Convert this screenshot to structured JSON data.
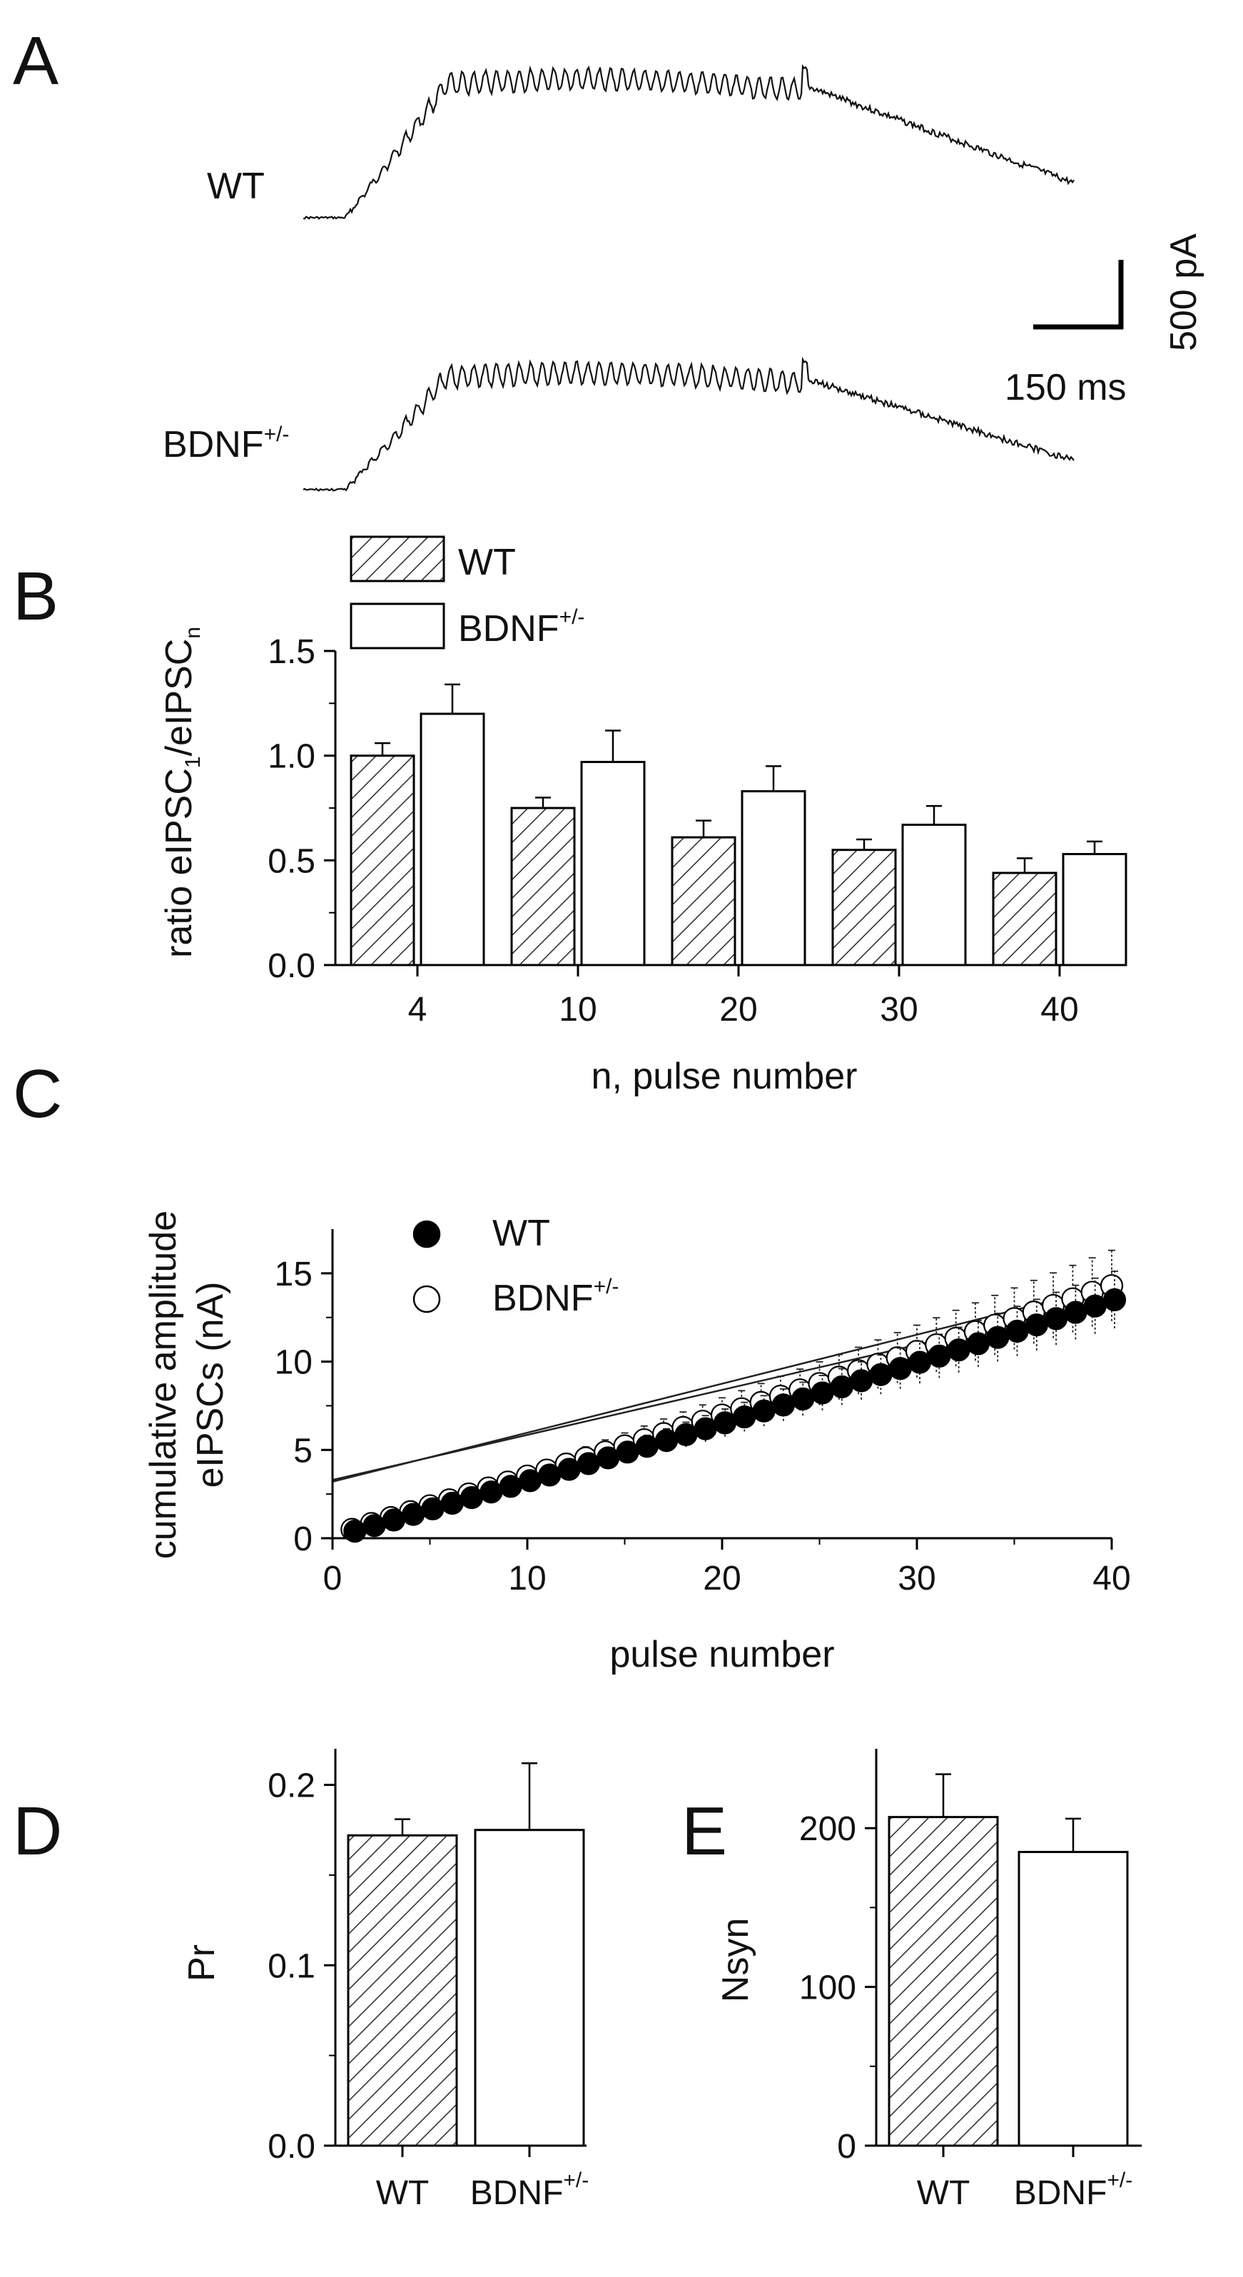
{
  "panel_labels": [
    "A",
    "B",
    "C",
    "D",
    "E"
  ],
  "panel_a": {
    "traces": [
      {
        "label": "WT",
        "sup": ""
      },
      {
        "label": "BDNF",
        "sup": "+/-"
      }
    ],
    "scalebar": {
      "amplitude_label": "500 pA",
      "time_label": "150 ms"
    }
  },
  "chart_data": [
    {
      "panel": "B",
      "type": "bar",
      "categories": [
        "4",
        "10",
        "20",
        "30",
        "40"
      ],
      "series": [
        {
          "name": "WT",
          "pattern": "hatched",
          "values": [
            1.0,
            0.75,
            0.61,
            0.55,
            0.44
          ],
          "errors": [
            0.06,
            0.05,
            0.08,
            0.05,
            0.07
          ]
        },
        {
          "name": "BDNF",
          "sup": "+/-",
          "pattern": "open",
          "values": [
            1.2,
            0.97,
            0.83,
            0.67,
            0.53
          ],
          "errors": [
            0.14,
            0.15,
            0.12,
            0.09,
            0.06
          ]
        }
      ],
      "ylabel": {
        "pre": "ratio eIPSC",
        "sub1": "1",
        "mid": "/eIPSC",
        "sub2": "n"
      },
      "xlabel": "n, pulse number",
      "ylim": [
        0,
        1.5
      ],
      "yticks": [
        "0.0",
        "0.5",
        "1.0",
        "1.5"
      ]
    },
    {
      "panel": "C",
      "type": "scatter",
      "series": [
        {
          "name": "WT",
          "marker": "filled-circle",
          "x_start": 1,
          "x_end": 40,
          "y_start": 0.4,
          "y_end": 13.5,
          "err_frac": 0.12
        },
        {
          "name": "BDNF",
          "sup": "+/-",
          "marker": "open-circle",
          "x_start": 1,
          "x_end": 40,
          "y_start": 0.5,
          "y_end": 14.3,
          "err_frac": 0.14
        }
      ],
      "fit_lines": [
        {
          "y_intercept": 3.3,
          "y_at_40": 13.5
        },
        {
          "y_intercept": 3.2,
          "y_at_40": 14.3
        }
      ],
      "ylabel_lines": [
        "cumulative amplitude",
        "eIPSCs (nA)"
      ],
      "xlabel": "pulse number",
      "xlim": [
        0,
        40
      ],
      "ylim": [
        0,
        17.5
      ],
      "xticks": [
        "0",
        "10",
        "20",
        "30",
        "40"
      ],
      "yticks": [
        "0",
        "5",
        "10",
        "15"
      ]
    },
    {
      "panel": "D",
      "type": "bar",
      "categories": [
        "WT",
        "BDNF"
      ],
      "category_sups": [
        "",
        "+/-"
      ],
      "patterns": [
        "hatched",
        "open"
      ],
      "values": [
        0.172,
        0.175
      ],
      "errors": [
        0.009,
        0.037
      ],
      "ylabel": "Pr",
      "ylim": [
        0,
        0.22
      ],
      "yticks": [
        "0.0",
        "0.1",
        "0.2"
      ]
    },
    {
      "panel": "E",
      "type": "bar",
      "categories": [
        "WT",
        "BDNF"
      ],
      "category_sups": [
        "",
        "+/-"
      ],
      "patterns": [
        "hatched",
        "open"
      ],
      "values": [
        207,
        185
      ],
      "errors": [
        27,
        21
      ],
      "ylabel": "Nsyn",
      "ylim": [
        0,
        250
      ],
      "yticks": [
        "0",
        "100",
        "200"
      ]
    }
  ]
}
